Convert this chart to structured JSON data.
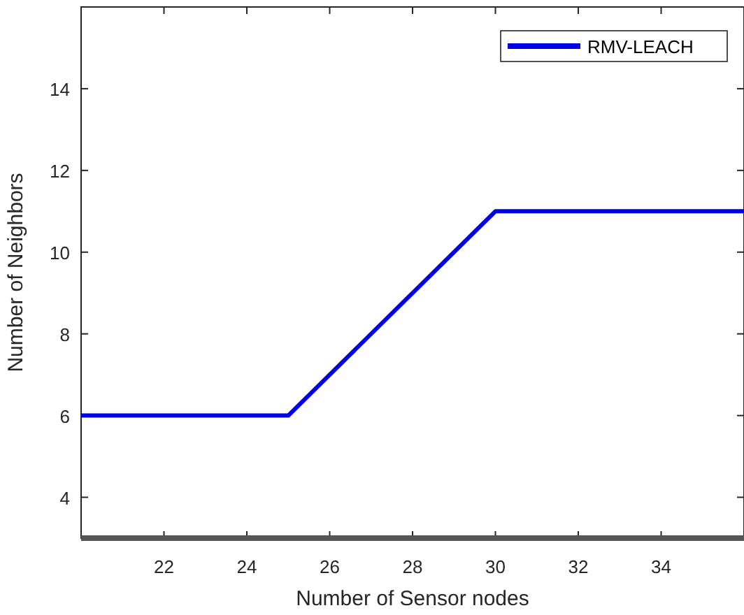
{
  "chart_data": {
    "type": "line",
    "xlabel": "Number of Sensor nodes",
    "ylabel": "Number of Neighbors",
    "x": [
      20,
      25,
      30,
      36
    ],
    "series": [
      {
        "name": "RMV-LEACH",
        "color": "#0000e6",
        "values": [
          6,
          6,
          11,
          11
        ]
      }
    ],
    "xlim": [
      20,
      36
    ],
    "xticks": [
      22,
      24,
      26,
      28,
      30,
      32,
      34
    ],
    "ylim": [
      3,
      16
    ],
    "yticks": [
      4,
      6,
      8,
      10,
      12,
      14
    ],
    "legend": "top right",
    "grid": false,
    "line_style": "solid",
    "marker": "none"
  }
}
